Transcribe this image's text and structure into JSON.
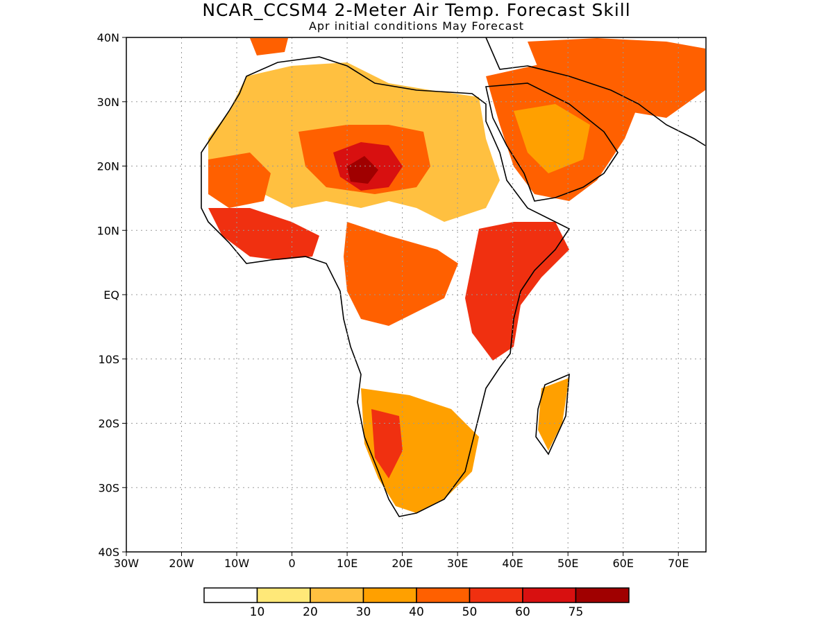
{
  "header": {
    "title": "NCAR_CCSM4 2-Meter Air Temp. Forecast Skill",
    "subtitle": "Apr initial conditions  May Forecast"
  },
  "map": {
    "lat_labels": [
      "40N",
      "30N",
      "20N",
      "10N",
      "EQ",
      "10S",
      "20S",
      "30S",
      "40S"
    ],
    "lon_labels": [
      "30W",
      "20W",
      "10W",
      "0",
      "10E",
      "20E",
      "30E",
      "40E",
      "50E",
      "60E",
      "70E"
    ],
    "lon_range": [
      -30,
      75
    ],
    "lat_range": [
      -40,
      40
    ],
    "grid": "dotted",
    "colors": {
      "none": "#ffffff",
      "c10_20": "#ffe878",
      "c20_30": "#ffc040",
      "c30_40": "#ffa000",
      "c40_50": "#ff6000",
      "c50_60": "#f03010",
      "c60_75": "#d81010",
      "c75": "#a00000"
    }
  },
  "legend": {
    "labels": [
      "10",
      "20",
      "30",
      "40",
      "50",
      "60",
      "75"
    ],
    "colors": [
      "#ffffff",
      "#ffe878",
      "#ffc040",
      "#ffa000",
      "#ff6000",
      "#f03010",
      "#d81010",
      "#a00000"
    ]
  }
}
